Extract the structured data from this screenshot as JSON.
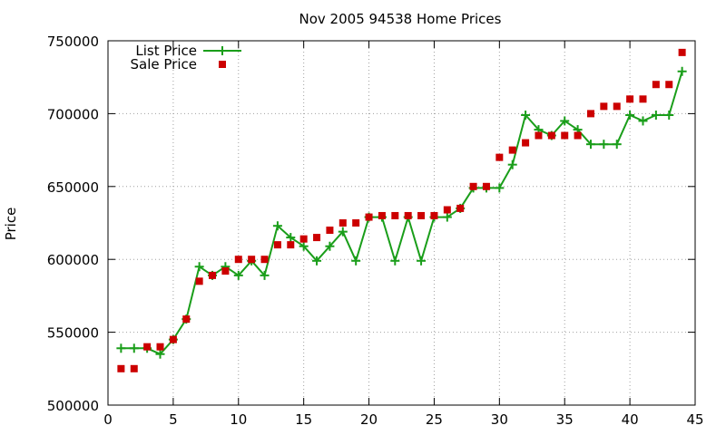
{
  "chart_data": {
    "type": "line",
    "title": "Nov 2005 94538 Home Prices",
    "xlabel": "",
    "ylabel": "Price",
    "xlim": [
      0,
      45
    ],
    "ylim": [
      500000,
      750000
    ],
    "xticks": [
      0,
      5,
      10,
      15,
      20,
      25,
      30,
      35,
      40,
      45
    ],
    "yticks": [
      500000,
      550000,
      600000,
      650000,
      700000,
      750000
    ],
    "xtick_labels": [
      "0",
      "5",
      "10",
      "15",
      "20",
      "25",
      "30",
      "35",
      "40",
      "45"
    ],
    "ytick_labels": [
      "500000",
      "550000",
      "600000",
      "650000",
      "700000",
      "750000"
    ],
    "grid": true,
    "legend_position": "top-left",
    "series": [
      {
        "name": "List Price",
        "style": "linespoints",
        "marker": "plus",
        "color": "#1a9e1a",
        "x": [
          1,
          2,
          3,
          4,
          5,
          6,
          7,
          8,
          9,
          10,
          11,
          12,
          13,
          14,
          15,
          16,
          17,
          18,
          19,
          20,
          21,
          22,
          23,
          24,
          25,
          26,
          27,
          28,
          29,
          30,
          31,
          32,
          33,
          34,
          35,
          36,
          37,
          38,
          39,
          40,
          41,
          42,
          43,
          44
        ],
        "y": [
          539000,
          539000,
          539000,
          535000,
          545000,
          559000,
          595000,
          589000,
          595000,
          589000,
          599000,
          589000,
          623000,
          615000,
          609000,
          599000,
          609000,
          619000,
          599000,
          629000,
          629000,
          599000,
          629000,
          599000,
          629000,
          629000,
          635000,
          649000,
          649000,
          649000,
          665000,
          699000,
          689000,
          685000,
          695000,
          689000,
          679000,
          679000,
          679000,
          699000,
          695000,
          699000,
          699000,
          729000
        ]
      },
      {
        "name": "Sale Price",
        "style": "points",
        "marker": "square",
        "color": "#cc0000",
        "x": [
          1,
          2,
          3,
          4,
          5,
          6,
          7,
          8,
          9,
          10,
          11,
          12,
          13,
          14,
          15,
          16,
          17,
          18,
          19,
          20,
          21,
          22,
          23,
          24,
          25,
          26,
          27,
          28,
          29,
          30,
          31,
          32,
          33,
          34,
          35,
          36,
          37,
          38,
          39,
          40,
          41,
          42,
          43,
          44
        ],
        "y": [
          525000,
          525000,
          540000,
          540000,
          545000,
          559000,
          585000,
          589000,
          592000,
          600000,
          600000,
          600000,
          610000,
          610000,
          614000,
          615000,
          620000,
          625000,
          625000,
          629000,
          630000,
          630000,
          630000,
          630000,
          630000,
          634000,
          635000,
          650000,
          650000,
          670000,
          675000,
          680000,
          685000,
          685000,
          685000,
          685000,
          700000,
          705000,
          705000,
          710000,
          710000,
          720000,
          720000,
          742000
        ]
      }
    ]
  }
}
